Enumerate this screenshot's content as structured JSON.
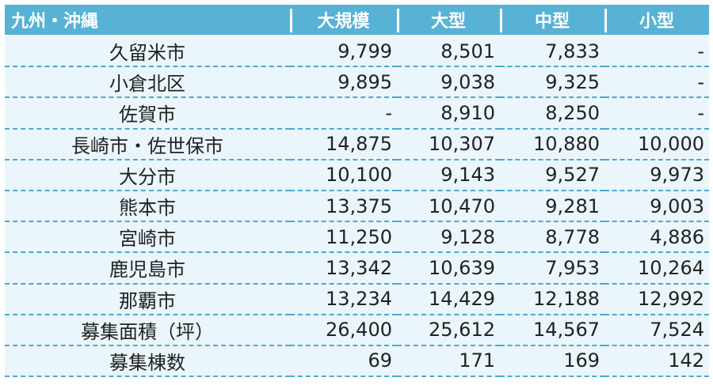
{
  "table": {
    "headers": [
      "九州・沖縄",
      "大規模",
      "大型",
      "中型",
      "小型"
    ],
    "rows": [
      [
        "久留米市",
        "9,799",
        "8,501",
        "7,833",
        "-"
      ],
      [
        "小倉北区",
        "9,895",
        "9,038",
        "9,325",
        "-"
      ],
      [
        "佐賀市",
        "-",
        "8,910",
        "8,250",
        "-"
      ],
      [
        "長崎市・佐世保市",
        "14,875",
        "10,307",
        "10,880",
        "10,000"
      ],
      [
        "大分市",
        "10,100",
        "9,143",
        "9,527",
        "9,973"
      ],
      [
        "熊本市",
        "13,375",
        "10,470",
        "9,281",
        "9,003"
      ],
      [
        "宮崎市",
        "11,250",
        "9,128",
        "8,778",
        "4,886"
      ],
      [
        "鹿児島市",
        "13,342",
        "10,639",
        "7,953",
        "10,264"
      ],
      [
        "那覇市",
        "13,234",
        "14,429",
        "12,188",
        "12,992"
      ],
      [
        "募集面積（坪）",
        "26,400",
        "25,612",
        "14,567",
        "7,524"
      ],
      [
        "募集棟数",
        "69",
        "171",
        "169",
        "142"
      ]
    ]
  },
  "colors": {
    "header_bg": "#57b2d6",
    "row_bg": "#eaf6fb",
    "divider": "#4aa9d0"
  }
}
